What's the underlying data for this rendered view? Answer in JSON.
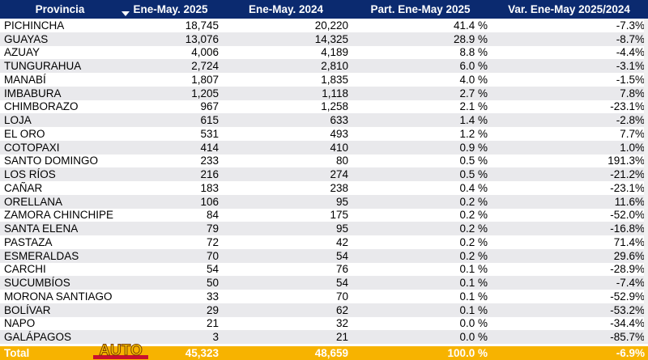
{
  "header": {
    "provincia": "Provincia",
    "ene_may_2025": "Ene-May. 2025",
    "ene_may_2024": "Ene-May. 2024",
    "part": "Part. Ene-May 2025",
    "var": "Var. Ene-May 2025/2024"
  },
  "rows": [
    {
      "provincia": "PICHINCHA",
      "y2025": "18,745",
      "y2024": "20,220",
      "part": "41.4 %",
      "var": "-7.3%"
    },
    {
      "provincia": "GUAYAS",
      "y2025": "13,076",
      "y2024": "14,325",
      "part": "28.9 %",
      "var": "-8.7%"
    },
    {
      "provincia": "AZUAY",
      "y2025": "4,006",
      "y2024": "4,189",
      "part": "8.8 %",
      "var": "-4.4%"
    },
    {
      "provincia": "TUNGURAHUA",
      "y2025": "2,724",
      "y2024": "2,810",
      "part": "6.0 %",
      "var": "-3.1%"
    },
    {
      "provincia": "MANABÍ",
      "y2025": "1,807",
      "y2024": "1,835",
      "part": "4.0 %",
      "var": "-1.5%"
    },
    {
      "provincia": "IMBABURA",
      "y2025": "1,205",
      "y2024": "1,118",
      "part": "2.7 %",
      "var": "7.8%"
    },
    {
      "provincia": "CHIMBORAZO",
      "y2025": "967",
      "y2024": "1,258",
      "part": "2.1 %",
      "var": "-23.1%"
    },
    {
      "provincia": "LOJA",
      "y2025": "615",
      "y2024": "633",
      "part": "1.4 %",
      "var": "-2.8%"
    },
    {
      "provincia": "EL ORO",
      "y2025": "531",
      "y2024": "493",
      "part": "1.2 %",
      "var": "7.7%"
    },
    {
      "provincia": "COTOPAXI",
      "y2025": "414",
      "y2024": "410",
      "part": "0.9 %",
      "var": "1.0%"
    },
    {
      "provincia": "SANTO DOMINGO",
      "y2025": "233",
      "y2024": "80",
      "part": "0.5 %",
      "var": "191.3%"
    },
    {
      "provincia": "LOS RÍOS",
      "y2025": "216",
      "y2024": "274",
      "part": "0.5 %",
      "var": "-21.2%"
    },
    {
      "provincia": "CAÑAR",
      "y2025": "183",
      "y2024": "238",
      "part": "0.4 %",
      "var": "-23.1%"
    },
    {
      "provincia": "ORELLANA",
      "y2025": "106",
      "y2024": "95",
      "part": "0.2 %",
      "var": "11.6%"
    },
    {
      "provincia": "ZAMORA CHINCHIPE",
      "y2025": "84",
      "y2024": "175",
      "part": "0.2 %",
      "var": "-52.0%"
    },
    {
      "provincia": "SANTA ELENA",
      "y2025": "79",
      "y2024": "95",
      "part": "0.2 %",
      "var": "-16.8%"
    },
    {
      "provincia": "PASTAZA",
      "y2025": "72",
      "y2024": "42",
      "part": "0.2 %",
      "var": "71.4%"
    },
    {
      "provincia": "ESMERALDAS",
      "y2025": "70",
      "y2024": "54",
      "part": "0.2 %",
      "var": "29.6%"
    },
    {
      "provincia": "CARCHI",
      "y2025": "54",
      "y2024": "76",
      "part": "0.1 %",
      "var": "-28.9%"
    },
    {
      "provincia": "SUCUMBÍOS",
      "y2025": "50",
      "y2024": "54",
      "part": "0.1 %",
      "var": "-7.4%"
    },
    {
      "provincia": "MORONA SANTIAGO",
      "y2025": "33",
      "y2024": "70",
      "part": "0.1 %",
      "var": "-52.9%"
    },
    {
      "provincia": "BOLÍVAR",
      "y2025": "29",
      "y2024": "62",
      "part": "0.1 %",
      "var": "-53.2%"
    },
    {
      "provincia": "NAPO",
      "y2025": "21",
      "y2024": "32",
      "part": "0.0 %",
      "var": "-34.4%"
    },
    {
      "provincia": "GALÁPAGOS",
      "y2025": "3",
      "y2024": "21",
      "part": "0.0 %",
      "var": "-85.7%"
    }
  ],
  "total": {
    "label": "Total",
    "y2025": "45,323",
    "y2024": "48,659",
    "part": "100.0 %",
    "var": "-6.9%"
  },
  "logo": {
    "text": "AUTO"
  },
  "colors": {
    "header_bg": "#0b2a6f",
    "total_bg": "#f7b300",
    "alt_row": "#e9e9ec"
  },
  "icons": {
    "sort": "sort-down-icon"
  }
}
